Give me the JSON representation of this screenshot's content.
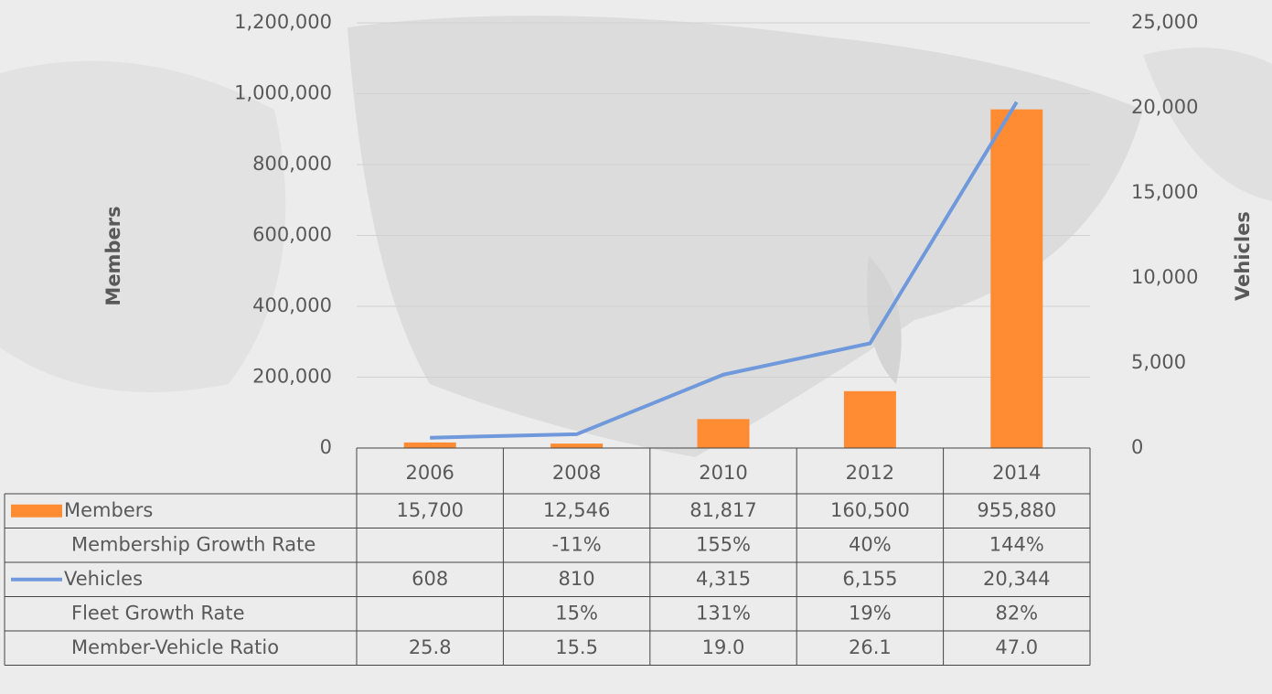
{
  "chart_data": {
    "type": "bar",
    "ylabel": "Members",
    "y2label": "Vehicles",
    "categories": [
      "2006",
      "2008",
      "2010",
      "2012",
      "2014"
    ],
    "series": [
      {
        "name": "Members",
        "type": "bar",
        "color": "#ff8c33",
        "values": [
          15700,
          12546,
          81817,
          160500,
          955880
        ],
        "value_labels": [
          "15,700",
          "12,546",
          "81,817",
          "160,500",
          "955,880"
        ]
      },
      {
        "name": "Vehicles",
        "type": "line",
        "axis": "y2",
        "color": "#7099dc",
        "values": [
          608,
          810,
          4315,
          6155,
          20344
        ],
        "value_labels": [
          "608",
          "810",
          "4,315",
          "6,155",
          "20,344"
        ]
      }
    ],
    "table_rows": [
      {
        "name": "Membership Growth Rate",
        "values": [
          null,
          -11,
          155,
          40,
          144
        ],
        "value_labels": [
          null,
          "-11%",
          "155%",
          "40%",
          "144%"
        ]
      },
      {
        "name": "Fleet Growth Rate",
        "values": [
          null,
          15,
          131,
          19,
          82
        ],
        "value_labels": [
          null,
          "15%",
          "131%",
          "19%",
          "82%"
        ]
      },
      {
        "name": "Member-Vehicle Ratio",
        "values": [
          25.8,
          15.5,
          19.0,
          26.1,
          47.0
        ],
        "value_labels": [
          "25.8",
          "15.5",
          "19.0",
          "26.1",
          "47.0"
        ]
      }
    ],
    "ylim": [
      0,
      1200000
    ],
    "yticks": [
      0,
      {
        "value": 200000,
        "label": "200,000"
      },
      {
        "value": 400000,
        "label": "400,000"
      },
      {
        "value": 600000,
        "label": "600,000"
      },
      {
        "value": 800000,
        "label": "800,000"
      },
      {
        "value": 1000000,
        "label": "1,000,000"
      },
      {
        "value": 1200000,
        "label": "1,200,000"
      }
    ],
    "y2lim": [
      0,
      25000
    ],
    "y2ticks": [
      0,
      {
        "value": 5000,
        "label": "5,000"
      },
      {
        "value": 10000,
        "label": "10,000"
      },
      {
        "value": 15000,
        "label": "15,000"
      },
      {
        "value": 20000,
        "label": "20,000"
      },
      {
        "value": 25000,
        "label": "25,000"
      }
    ],
    "grid": true
  }
}
